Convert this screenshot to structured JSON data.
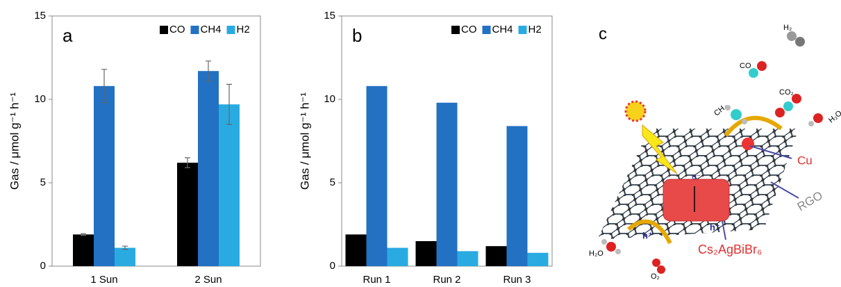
{
  "chart_data": [
    {
      "type": "bar",
      "label": "a",
      "y_label": "Gas / μmol g⁻¹ h⁻¹",
      "categories": [
        "1 Sun",
        "2 Sun"
      ],
      "series": [
        {
          "name": "CO",
          "color": "#000000",
          "values": [
            1.9,
            6.2
          ],
          "errors": [
            0.05,
            0.3
          ]
        },
        {
          "name": "CH4",
          "color": "#2271c3",
          "values": [
            10.8,
            11.7
          ],
          "errors": [
            1.0,
            0.6
          ]
        },
        {
          "name": "H2",
          "color": "#29abe2",
          "values": [
            1.1,
            9.7
          ],
          "errors": [
            0.1,
            1.2
          ]
        }
      ],
      "ylim": [
        0,
        15
      ],
      "yticks": [
        0,
        5,
        10,
        15
      ],
      "grid": false,
      "legend": "upper right"
    },
    {
      "type": "bar",
      "label": "b",
      "y_label": "Gas / μmol g⁻¹ h⁻¹",
      "categories": [
        "Run 1",
        "Run 2",
        "Run 3"
      ],
      "series": [
        {
          "name": "CO",
          "color": "#000000",
          "values": [
            1.9,
            1.5,
            1.2
          ]
        },
        {
          "name": "CH4",
          "color": "#2271c3",
          "values": [
            10.8,
            9.8,
            8.4
          ]
        },
        {
          "name": "H2",
          "color": "#29abe2",
          "values": [
            1.1,
            0.9,
            0.8
          ]
        }
      ],
      "ylim": [
        0,
        15
      ],
      "yticks": [
        0,
        5,
        10,
        15
      ],
      "grid": false,
      "legend": "upper right"
    }
  ],
  "diagram": {
    "label": "c",
    "cu": "Cu",
    "rgo": "RGO",
    "perovskite": "Cs₂AgBiBr₆",
    "molecules": {
      "h2": "H₂",
      "co": "CO",
      "ch4": "CH₄",
      "co2": "CO₂",
      "h2o_top": "H₂O",
      "h2o": "H₂O",
      "o2": "O₂"
    },
    "electron": "e⁻",
    "hole_left": "h⁺",
    "hole_right": "h⁺"
  }
}
